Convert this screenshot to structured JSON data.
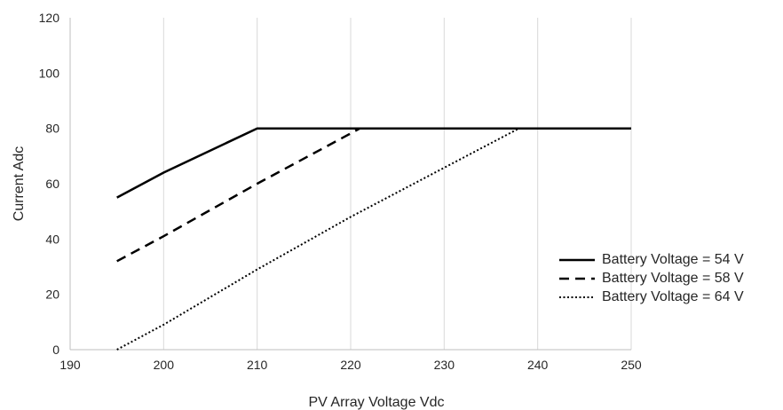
{
  "chart_data": {
    "type": "line",
    "title": "",
    "xlabel": "PV Array Voltage Vdc",
    "ylabel": "Current Adc",
    "xlim": [
      190,
      250
    ],
    "ylim": [
      0,
      120
    ],
    "xticks": [
      190,
      200,
      210,
      220,
      230,
      240,
      250
    ],
    "yticks": [
      0,
      20,
      40,
      60,
      80,
      100,
      120
    ],
    "grid": "vertical",
    "legend_position": "right",
    "series": [
      {
        "name": "Battery Voltage = 54 V",
        "style": "solid",
        "points": [
          [
            195,
            55
          ],
          [
            200,
            64
          ],
          [
            210,
            80
          ],
          [
            250,
            80
          ]
        ]
      },
      {
        "name": "Battery Voltage = 58 V",
        "style": "dashed",
        "points": [
          [
            195,
            32
          ],
          [
            200,
            41
          ],
          [
            210,
            60
          ],
          [
            221,
            80
          ],
          [
            250,
            80
          ]
        ]
      },
      {
        "name": "Battery Voltage = 64 V",
        "style": "dotted",
        "points": [
          [
            195,
            0
          ],
          [
            200,
            9
          ],
          [
            210,
            29
          ],
          [
            220,
            48
          ],
          [
            238,
            80
          ],
          [
            250,
            80
          ]
        ]
      }
    ],
    "colors": {
      "line": "#000000",
      "grid": "#d9d9d9",
      "axis": "#bfbfbf"
    }
  }
}
